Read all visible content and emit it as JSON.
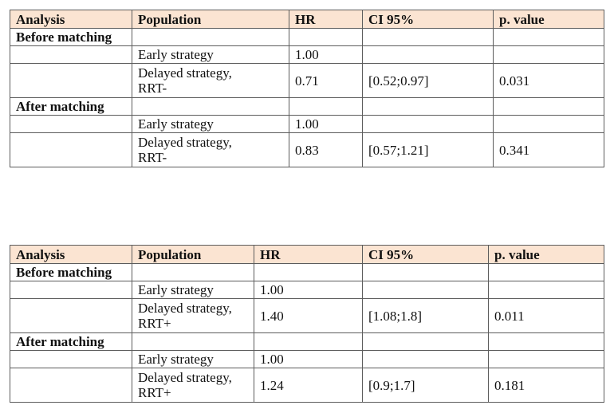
{
  "headers": {
    "analysis": "Analysis",
    "population": "Population",
    "hr": "HR",
    "ci": "CI 95%",
    "p": "p. value"
  },
  "sections": {
    "before": "Before matching",
    "after": "After matching"
  },
  "table1": {
    "before": {
      "row1": {
        "population": "Early strategy",
        "hr": "1.00"
      },
      "row2": {
        "population_line1": "Delayed strategy,",
        "population_line2": "RRT-",
        "hr": "0.71",
        "ci": "[0.52;0.97]",
        "p": "0.031"
      }
    },
    "after": {
      "row1": {
        "population": "Early strategy",
        "hr": "1.00"
      },
      "row2": {
        "population_line1": "Delayed strategy,",
        "population_line2": "RRT-",
        "hr": "0.83",
        "ci": "[0.57;1.21]",
        "p": "0.341"
      }
    }
  },
  "table2": {
    "before": {
      "row1": {
        "population": "Early strategy",
        "hr": "1.00"
      },
      "row2": {
        "population_line1": "Delayed strategy,",
        "population_line2": "RRT+",
        "hr": "1.40",
        "ci": "[1.08;1.8]",
        "p": "0.011"
      }
    },
    "after": {
      "row1": {
        "population": "Early strategy",
        "hr": "1.00"
      },
      "row2": {
        "population_line1": "Delayed strategy,",
        "population_line2": "RRT+",
        "hr": "1.24",
        "ci": "[0.9;1.7]",
        "p": "0.181"
      }
    }
  }
}
